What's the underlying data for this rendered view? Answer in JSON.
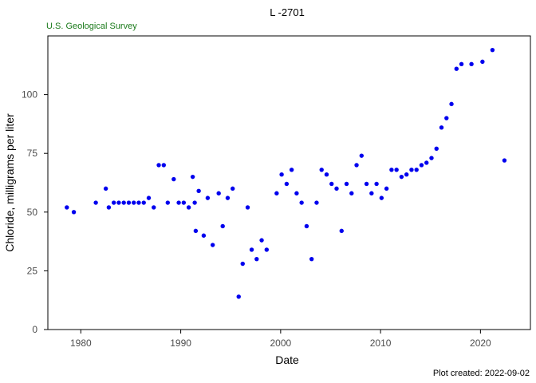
{
  "colors": {
    "point": "#0000ee",
    "agency": "#1a7a1a",
    "frame": "#000000"
  },
  "chart_data": {
    "type": "scatter",
    "title": "L  -2701",
    "subtitle": "U.S. Geological Survey",
    "xlabel": "Date",
    "ylabel": "Chloride, milligrams per liter",
    "footer": "Plot created: 2022-09-02",
    "xlim": [
      1976.7,
      2025.0
    ],
    "ylim": [
      0,
      125
    ],
    "xticks": [
      "1980",
      "1990",
      "2000",
      "2010",
      "2020"
    ],
    "yticks": [
      "0",
      "25",
      "50",
      "75",
      "100"
    ],
    "grid": false,
    "legend": "none",
    "points": [
      {
        "x": 1978.6,
        "y": 52
      },
      {
        "x": 1979.3,
        "y": 50
      },
      {
        "x": 1981.5,
        "y": 54
      },
      {
        "x": 1982.5,
        "y": 60
      },
      {
        "x": 1982.8,
        "y": 52
      },
      {
        "x": 1983.3,
        "y": 54
      },
      {
        "x": 1983.8,
        "y": 54
      },
      {
        "x": 1984.3,
        "y": 54
      },
      {
        "x": 1984.8,
        "y": 54
      },
      {
        "x": 1985.3,
        "y": 54
      },
      {
        "x": 1985.8,
        "y": 54
      },
      {
        "x": 1986.3,
        "y": 54
      },
      {
        "x": 1986.8,
        "y": 56
      },
      {
        "x": 1987.3,
        "y": 52
      },
      {
        "x": 1987.8,
        "y": 70
      },
      {
        "x": 1988.3,
        "y": 70
      },
      {
        "x": 1988.7,
        "y": 54
      },
      {
        "x": 1989.3,
        "y": 64
      },
      {
        "x": 1989.8,
        "y": 54
      },
      {
        "x": 1990.3,
        "y": 54
      },
      {
        "x": 1990.8,
        "y": 52
      },
      {
        "x": 1991.2,
        "y": 65
      },
      {
        "x": 1991.4,
        "y": 54
      },
      {
        "x": 1991.5,
        "y": 42
      },
      {
        "x": 1991.8,
        "y": 59
      },
      {
        "x": 1992.3,
        "y": 40
      },
      {
        "x": 1992.7,
        "y": 56
      },
      {
        "x": 1993.2,
        "y": 36
      },
      {
        "x": 1993.8,
        "y": 58
      },
      {
        "x": 1994.2,
        "y": 44
      },
      {
        "x": 1994.7,
        "y": 56
      },
      {
        "x": 1995.2,
        "y": 60
      },
      {
        "x": 1995.8,
        "y": 14
      },
      {
        "x": 1996.2,
        "y": 28
      },
      {
        "x": 1996.7,
        "y": 52
      },
      {
        "x": 1997.1,
        "y": 34
      },
      {
        "x": 1997.6,
        "y": 30
      },
      {
        "x": 1998.1,
        "y": 38
      },
      {
        "x": 1998.6,
        "y": 34
      },
      {
        "x": 1999.6,
        "y": 58
      },
      {
        "x": 2000.1,
        "y": 66
      },
      {
        "x": 2000.6,
        "y": 62
      },
      {
        "x": 2001.1,
        "y": 68
      },
      {
        "x": 2001.6,
        "y": 58
      },
      {
        "x": 2002.1,
        "y": 54
      },
      {
        "x": 2002.6,
        "y": 44
      },
      {
        "x": 2003.1,
        "y": 30
      },
      {
        "x": 2003.6,
        "y": 54
      },
      {
        "x": 2004.1,
        "y": 68
      },
      {
        "x": 2004.6,
        "y": 66
      },
      {
        "x": 2005.1,
        "y": 62
      },
      {
        "x": 2005.6,
        "y": 60
      },
      {
        "x": 2006.1,
        "y": 42
      },
      {
        "x": 2006.6,
        "y": 62
      },
      {
        "x": 2007.1,
        "y": 58
      },
      {
        "x": 2007.6,
        "y": 70
      },
      {
        "x": 2008.1,
        "y": 74
      },
      {
        "x": 2008.6,
        "y": 62
      },
      {
        "x": 2009.1,
        "y": 58
      },
      {
        "x": 2009.6,
        "y": 62
      },
      {
        "x": 2010.1,
        "y": 56
      },
      {
        "x": 2010.6,
        "y": 60
      },
      {
        "x": 2011.1,
        "y": 68
      },
      {
        "x": 2011.6,
        "y": 68
      },
      {
        "x": 2012.1,
        "y": 65
      },
      {
        "x": 2012.6,
        "y": 66
      },
      {
        "x": 2013.1,
        "y": 68
      },
      {
        "x": 2013.6,
        "y": 68
      },
      {
        "x": 2014.1,
        "y": 70
      },
      {
        "x": 2014.6,
        "y": 71
      },
      {
        "x": 2015.1,
        "y": 73
      },
      {
        "x": 2015.6,
        "y": 77
      },
      {
        "x": 2016.1,
        "y": 86
      },
      {
        "x": 2016.6,
        "y": 90
      },
      {
        "x": 2017.1,
        "y": 96
      },
      {
        "x": 2017.6,
        "y": 111
      },
      {
        "x": 2018.1,
        "y": 113
      },
      {
        "x": 2019.1,
        "y": 113
      },
      {
        "x": 2020.2,
        "y": 114
      },
      {
        "x": 2021.2,
        "y": 119
      },
      {
        "x": 2022.4,
        "y": 72
      }
    ]
  }
}
